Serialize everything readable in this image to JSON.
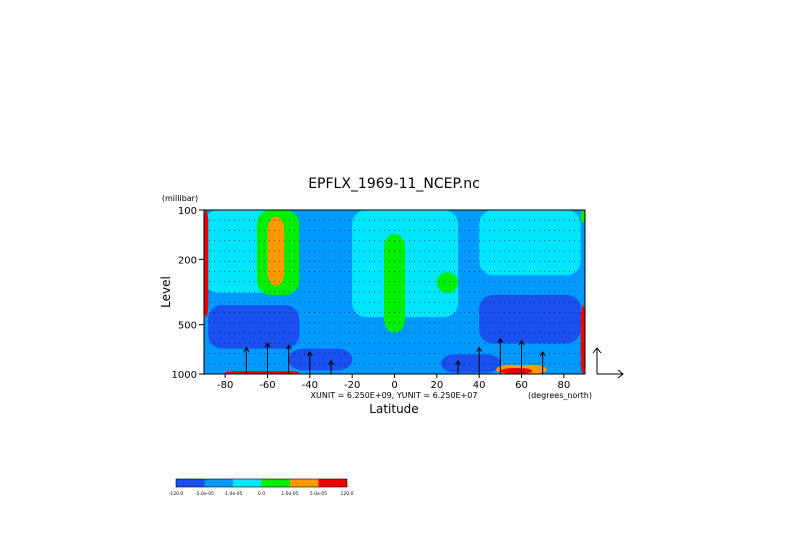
{
  "chart_data": {
    "type": "heatmap",
    "title": "EPFLX_1969-11_NCEP.nc",
    "xlabel": "Latitude",
    "x_unit_label": "(degrees_north)",
    "ylabel": "Level",
    "y_unit_label": "(millibar)",
    "xlim": [
      -90,
      90
    ],
    "ylim": [
      1000,
      100
    ],
    "y_scale": "log",
    "x_ticks": [
      -80,
      -60,
      -40,
      -20,
      0,
      20,
      40,
      60,
      80
    ],
    "y_ticks": [
      100,
      200,
      500,
      1000
    ],
    "vector_scale_label": "XUNIT = 6.250E+09, YUNIT = 6.250E+07",
    "legend_position": "bottom-left",
    "legend": [
      {
        "label": "-120.0",
        "color": "#1a4ff0"
      },
      {
        "label": "-5.0e-05",
        "color": "#0099ff"
      },
      {
        "label": "-1.0e-05",
        "color": "#00e6ff"
      },
      {
        "label": "0.0",
        "color": "#00f000"
      },
      {
        "label": "1.0e-05",
        "color": "#ff9900"
      },
      {
        "label": "5.0e-05",
        "color": "#f00000"
      },
      {
        "label": "120.0"
      }
    ],
    "levels": [
      -120.0,
      -5e-05,
      -1e-05,
      0.0,
      1e-05,
      5e-05,
      120.0
    ],
    "regions": [
      {
        "value": -3e-05,
        "lat": [
          -90,
          90
        ],
        "p": [
          100,
          1000
        ]
      },
      {
        "value": -5e-06,
        "lat": [
          -90,
          -50
        ],
        "p": [
          100,
          320
        ]
      },
      {
        "value": -5e-06,
        "lat": [
          -20,
          30
        ],
        "p": [
          100,
          450
        ]
      },
      {
        "value": -5e-06,
        "lat": [
          40,
          88
        ],
        "p": [
          100,
          250
        ]
      },
      {
        "value": -6e-05,
        "lat": [
          -88,
          -45
        ],
        "p": [
          380,
          700
        ]
      },
      {
        "value": -6e-05,
        "lat": [
          40,
          88
        ],
        "p": [
          330,
          650
        ]
      },
      {
        "value": -6e-05,
        "lat": [
          -50,
          -20
        ],
        "p": [
          700,
          950
        ]
      },
      {
        "value": -6e-05,
        "lat": [
          22,
          50
        ],
        "p": [
          760,
          980
        ]
      },
      {
        "value": 5e-06,
        "lat": [
          -65,
          -45
        ],
        "p": [
          100,
          330
        ]
      },
      {
        "value": 5e-06,
        "lat": [
          -5,
          5
        ],
        "p": [
          140,
          560
        ]
      },
      {
        "value": 5e-06,
        "lat": [
          20,
          30
        ],
        "p": [
          240,
          320
        ]
      },
      {
        "value": 5e-06,
        "lat": [
          88,
          90
        ],
        "p": [
          100,
          120
        ]
      },
      {
        "value": 3e-05,
        "lat": [
          -60,
          -52
        ],
        "p": [
          110,
          290
        ]
      },
      {
        "value": 3e-05,
        "lat": [
          48,
          72
        ],
        "p": [
          880,
          1000
        ]
      },
      {
        "value": 0.0001,
        "lat": [
          -80,
          -45
        ],
        "p": [
          960,
          1000
        ]
      },
      {
        "value": 0.0001,
        "lat": [
          50,
          65
        ],
        "p": [
          920,
          1000
        ]
      },
      {
        "value": 0.0001,
        "lat": [
          -90,
          -88
        ],
        "p": [
          100,
          450
        ]
      },
      {
        "value": 0.0001,
        "lat": [
          88,
          90
        ],
        "p": [
          380,
          1000
        ]
      }
    ],
    "vectors": [
      {
        "lat": -70,
        "p": 1000,
        "u": 0,
        "v": 1.2
      },
      {
        "lat": -60,
        "p": 1000,
        "u": 0,
        "v": 1.4
      },
      {
        "lat": -50,
        "p": 1000,
        "u": 0,
        "v": 1.3
      },
      {
        "lat": -40,
        "p": 1000,
        "u": 0,
        "v": 1.0
      },
      {
        "lat": -30,
        "p": 1000,
        "u": 0,
        "v": 0.6
      },
      {
        "lat": 30,
        "p": 1000,
        "u": 0,
        "v": 0.6
      },
      {
        "lat": 40,
        "p": 1000,
        "u": 0,
        "v": 1.2
      },
      {
        "lat": 50,
        "p": 1000,
        "u": 0,
        "v": 1.6
      },
      {
        "lat": 60,
        "p": 1000,
        "u": 0,
        "v": 1.5
      },
      {
        "lat": 70,
        "p": 1000,
        "u": 0,
        "v": 1.0
      }
    ]
  }
}
